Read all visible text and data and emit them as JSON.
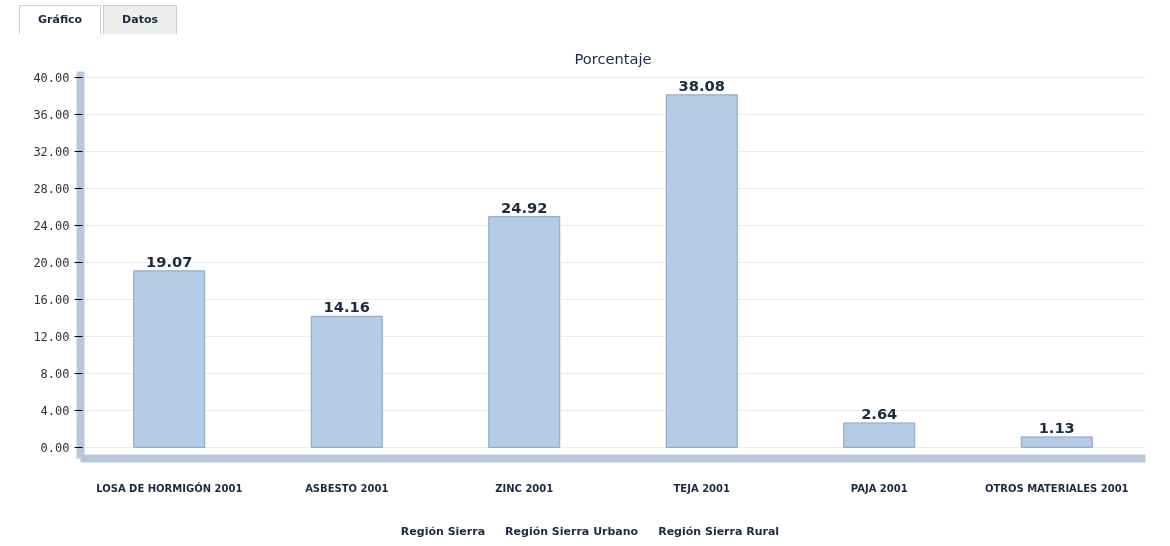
{
  "chart_data": {
    "type": "bar",
    "title": "Porcentaje",
    "categories": [
      "LOSA DE HORMIGÓN 2001",
      "ASBESTO 2001",
      "ZINC 2001",
      "TEJA 2001",
      "PAJA 2001",
      "OTROS MATERIALES 2001"
    ],
    "values": [
      19.07,
      14.16,
      24.92,
      38.08,
      2.64,
      1.13
    ],
    "color": "#b4cce6",
    "ylim": [
      -1.2,
      40.6
    ],
    "yticks": [
      {
        "value": 0,
        "label": "0.00"
      },
      {
        "value": 4,
        "label": "4.00"
      },
      {
        "value": 8,
        "label": "8.00"
      },
      {
        "value": 12,
        "label": "12.00"
      },
      {
        "value": 16,
        "label": "16.00"
      },
      {
        "value": 20,
        "label": "20.00"
      },
      {
        "value": 24,
        "label": "24.00"
      },
      {
        "value": 28,
        "label": "28.00"
      },
      {
        "value": 32,
        "label": "32.00"
      },
      {
        "value": 36,
        "label": "36.00"
      },
      {
        "value": 40,
        "label": "40.00"
      }
    ],
    "grid": "y",
    "data_labels": true,
    "annotations": [
      "Gráfico",
      "Datos",
      "Región Sierra",
      "Región Sierra Urbano",
      "Región Sierra Rural"
    ]
  }
}
